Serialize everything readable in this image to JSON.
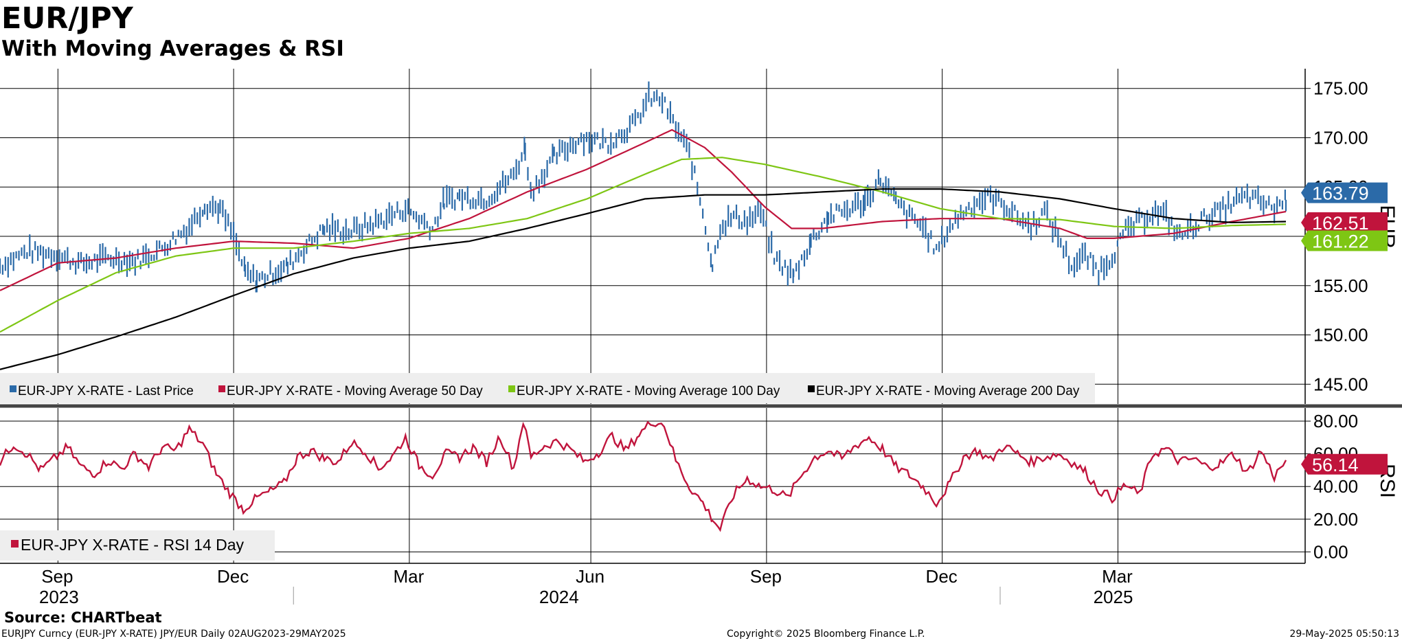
{
  "header": {
    "title": "EUR/JPY",
    "subtitle": "With Moving Averages & RSI"
  },
  "footer": {
    "source": "Source: CHARTbeat",
    "ticker_info": "EURJPY Curncy (EUR-JPY X-RATE) JPY/EUR  Daily 02AUG2023-29MAY2025",
    "copyright": "Copyright© 2025 Bloomberg Finance L.P.",
    "timestamp": "29-May-2025 05:50:13"
  },
  "colors": {
    "price": "#2b6aa8",
    "ma50": "#c0143c",
    "ma100": "#7ec614",
    "ma200": "#000000",
    "rsi": "#c0143c",
    "grid": "#000000",
    "legend_bg": "#eeeeee"
  },
  "chart_data": [
    {
      "type": "line",
      "panel": "price",
      "ylabel": "EUR",
      "ylim": [
        143,
        177
      ],
      "yticks": [
        "175.00",
        "170.00",
        "165.00",
        "160.00",
        "155.00",
        "150.00",
        "145.00"
      ],
      "ytick_values": [
        175,
        170,
        165,
        160,
        155,
        150,
        145
      ],
      "grid": true,
      "legend_position": "bottom-left",
      "x_tick_labels": [
        "Sep",
        "Dec",
        "Mar",
        "Jun",
        "Sep",
        "Dec",
        "Mar"
      ],
      "x_year_labels": [
        "2023",
        "2024",
        "2025"
      ],
      "x_tick_dates": [
        "2023-09-01",
        "2023-12-01",
        "2024-03-01",
        "2024-06-03",
        "2024-09-02",
        "2024-12-02",
        "2025-03-03"
      ],
      "x_year_dates": [
        "2023-10-16",
        "2024-07-01",
        "2025-04-14"
      ],
      "x_range": [
        "2023-08-02",
        "2025-05-29"
      ],
      "last_values": {
        "price": "163.79",
        "ma50": "162.51",
        "ma100": "161.22"
      },
      "series": [
        {
          "name": "EUR-JPY X-RATE - Last Price",
          "key": "price",
          "x": [
            "2023-08-02",
            "2023-08-16",
            "2023-08-30",
            "2023-09-13",
            "2023-09-27",
            "2023-10-11",
            "2023-10-25",
            "2023-11-08",
            "2023-11-16",
            "2023-11-24",
            "2023-12-01",
            "2023-12-07",
            "2023-12-13",
            "2023-12-20",
            "2023-12-29",
            "2024-01-05",
            "2024-01-17",
            "2024-01-31",
            "2024-02-14",
            "2024-02-28",
            "2024-03-13",
            "2024-03-19",
            "2024-03-27",
            "2024-04-10",
            "2024-04-24",
            "2024-04-30",
            "2024-05-03",
            "2024-05-15",
            "2024-05-29",
            "2024-06-12",
            "2024-06-26",
            "2024-07-03",
            "2024-07-10",
            "2024-07-17",
            "2024-07-24",
            "2024-07-31",
            "2024-08-05",
            "2024-08-09",
            "2024-08-16",
            "2024-08-23",
            "2024-08-30",
            "2024-09-06",
            "2024-09-16",
            "2024-09-25",
            "2024-10-04",
            "2024-10-11",
            "2024-10-23",
            "2024-10-31",
            "2024-11-08",
            "2024-11-15",
            "2024-11-22",
            "2024-11-29",
            "2024-12-06",
            "2024-12-13",
            "2024-12-20",
            "2024-12-27",
            "2025-01-03",
            "2025-01-10",
            "2025-01-17",
            "2025-01-24",
            "2025-01-31",
            "2025-02-07",
            "2025-02-14",
            "2025-02-21",
            "2025-02-28",
            "2025-03-07",
            "2025-03-14",
            "2025-03-21",
            "2025-03-28",
            "2025-04-04",
            "2025-04-11",
            "2025-04-18",
            "2025-04-25",
            "2025-05-02",
            "2025-05-09",
            "2025-05-16",
            "2025-05-23",
            "2025-05-29"
          ],
          "values": [
            157.0,
            158.5,
            158.2,
            157.2,
            157.8,
            157.5,
            158.8,
            161.0,
            163.2,
            162.8,
            160.0,
            156.3,
            155.5,
            156.2,
            157.0,
            158.5,
            160.8,
            160.5,
            161.5,
            162.8,
            160.8,
            163.5,
            164.0,
            163.8,
            166.2,
            169.0,
            164.5,
            168.0,
            170.0,
            169.5,
            171.5,
            174.0,
            173.8,
            171.0,
            168.5,
            162.5,
            157.0,
            161.0,
            162.0,
            161.5,
            162.5,
            157.8,
            156.0,
            159.5,
            162.0,
            162.5,
            163.5,
            165.8,
            163.5,
            162.0,
            161.0,
            158.5,
            161.0,
            162.5,
            163.5,
            164.0,
            163.2,
            162.0,
            161.0,
            162.5,
            160.0,
            157.0,
            158.0,
            156.5,
            158.0,
            160.5,
            161.5,
            162.5,
            162.0,
            160.0,
            161.0,
            162.0,
            162.5,
            163.5,
            164.0,
            163.5,
            162.8,
            163.79
          ]
        },
        {
          "name": "EUR-JPY X-RATE - Moving Average 50 Day",
          "key": "ma50",
          "x": [
            "2023-08-02",
            "2023-09-01",
            "2023-10-01",
            "2023-11-01",
            "2023-12-01",
            "2024-01-01",
            "2024-02-01",
            "2024-03-01",
            "2024-04-01",
            "2024-05-01",
            "2024-06-01",
            "2024-07-01",
            "2024-07-15",
            "2024-08-01",
            "2024-08-15",
            "2024-09-01",
            "2024-09-15",
            "2024-10-01",
            "2024-11-01",
            "2024-12-01",
            "2025-01-01",
            "2025-02-01",
            "2025-02-15",
            "2025-03-01",
            "2025-04-01",
            "2025-05-01",
            "2025-05-29"
          ],
          "values": [
            154.5,
            157.3,
            157.8,
            158.8,
            159.5,
            159.3,
            158.8,
            159.8,
            161.8,
            164.5,
            166.8,
            169.5,
            170.8,
            169.0,
            166.5,
            163.0,
            160.8,
            160.8,
            161.5,
            161.8,
            161.8,
            160.8,
            159.8,
            159.8,
            160.3,
            161.5,
            162.51
          ]
        },
        {
          "name": "EUR-JPY X-RATE - Moving Average 100 Day",
          "key": "ma100",
          "x": [
            "2023-08-02",
            "2023-09-01",
            "2023-10-01",
            "2023-11-01",
            "2023-12-01",
            "2024-01-01",
            "2024-02-01",
            "2024-03-01",
            "2024-04-01",
            "2024-05-01",
            "2024-06-01",
            "2024-07-01",
            "2024-07-20",
            "2024-08-10",
            "2024-09-01",
            "2024-10-01",
            "2024-11-01",
            "2024-12-01",
            "2025-01-01",
            "2025-02-01",
            "2025-03-01",
            "2025-04-01",
            "2025-05-01",
            "2025-05-29"
          ],
          "values": [
            150.3,
            153.5,
            156.3,
            158.0,
            158.8,
            158.8,
            159.5,
            160.3,
            160.8,
            161.8,
            163.8,
            166.3,
            167.8,
            168.0,
            167.3,
            166.0,
            164.5,
            162.8,
            161.8,
            161.7,
            161.0,
            160.8,
            161.1,
            161.22
          ]
        },
        {
          "name": "EUR-JPY X-RATE - Moving Average 200 Day",
          "key": "ma200",
          "x": [
            "2023-08-02",
            "2023-09-01",
            "2023-10-01",
            "2023-11-01",
            "2023-12-01",
            "2024-01-01",
            "2024-02-01",
            "2024-03-01",
            "2024-04-01",
            "2024-05-01",
            "2024-06-01",
            "2024-07-01",
            "2024-08-01",
            "2024-09-01",
            "2024-10-01",
            "2024-11-01",
            "2024-12-01",
            "2025-01-01",
            "2025-02-01",
            "2025-03-01",
            "2025-04-01",
            "2025-05-01",
            "2025-05-29"
          ],
          "values": [
            146.5,
            148.0,
            149.8,
            151.8,
            154.0,
            156.2,
            157.8,
            158.8,
            159.5,
            160.8,
            162.3,
            163.8,
            164.2,
            164.2,
            164.5,
            164.8,
            164.8,
            164.5,
            163.8,
            162.8,
            161.8,
            161.4,
            161.5
          ]
        }
      ]
    },
    {
      "type": "line",
      "panel": "rsi",
      "ylabel": "RSI",
      "ylim": [
        -7,
        88
      ],
      "yticks": [
        "80.00",
        "60.00",
        "40.00",
        "20.00",
        "0.00"
      ],
      "ytick_values": [
        80,
        60,
        40,
        20,
        0
      ],
      "grid": true,
      "legend_position": "bottom-left",
      "last_values": {
        "rsi": "56.14"
      },
      "series": [
        {
          "name": "EUR-JPY X-RATE - RSI 14 Day",
          "key": "rsi",
          "x": [
            "2023-08-02",
            "2023-08-09",
            "2023-08-16",
            "2023-08-23",
            "2023-08-30",
            "2023-09-06",
            "2023-09-13",
            "2023-09-20",
            "2023-09-27",
            "2023-10-04",
            "2023-10-11",
            "2023-10-18",
            "2023-10-25",
            "2023-11-01",
            "2023-11-08",
            "2023-11-15",
            "2023-11-22",
            "2023-11-29",
            "2023-12-06",
            "2023-12-13",
            "2023-12-20",
            "2023-12-27",
            "2024-01-03",
            "2024-01-10",
            "2024-01-17",
            "2024-01-24",
            "2024-01-31",
            "2024-02-07",
            "2024-02-14",
            "2024-02-21",
            "2024-02-28",
            "2024-03-06",
            "2024-03-13",
            "2024-03-20",
            "2024-03-27",
            "2024-04-03",
            "2024-04-10",
            "2024-04-17",
            "2024-04-24",
            "2024-04-29",
            "2024-05-03",
            "2024-05-10",
            "2024-05-17",
            "2024-05-24",
            "2024-05-31",
            "2024-06-07",
            "2024-06-14",
            "2024-06-21",
            "2024-06-28",
            "2024-07-05",
            "2024-07-11",
            "2024-07-17",
            "2024-07-24",
            "2024-07-31",
            "2024-08-05",
            "2024-08-09",
            "2024-08-16",
            "2024-08-23",
            "2024-08-30",
            "2024-09-06",
            "2024-09-13",
            "2024-09-20",
            "2024-09-27",
            "2024-10-04",
            "2024-10-11",
            "2024-10-18",
            "2024-10-25",
            "2024-11-01",
            "2024-11-08",
            "2024-11-15",
            "2024-11-22",
            "2024-11-29",
            "2024-12-06",
            "2024-12-13",
            "2024-12-20",
            "2024-12-27",
            "2025-01-03",
            "2025-01-10",
            "2025-01-17",
            "2025-01-24",
            "2025-01-31",
            "2025-02-07",
            "2025-02-14",
            "2025-02-21",
            "2025-02-28",
            "2025-03-07",
            "2025-03-14",
            "2025-03-21",
            "2025-03-28",
            "2025-04-04",
            "2025-04-11",
            "2025-04-18",
            "2025-04-25",
            "2025-05-02",
            "2025-05-09",
            "2025-05-16",
            "2025-05-23",
            "2025-05-29"
          ],
          "values": [
            55,
            66,
            60,
            50,
            57,
            64,
            52,
            48,
            56,
            51,
            60,
            52,
            64,
            62,
            75,
            66,
            48,
            36,
            26,
            33,
            37,
            42,
            58,
            62,
            57,
            55,
            67,
            62,
            51,
            58,
            70,
            53,
            47,
            60,
            58,
            64,
            55,
            71,
            51,
            80,
            58,
            65,
            68,
            62,
            55,
            61,
            71,
            62,
            72,
            80,
            78,
            56,
            40,
            30,
            20,
            14,
            35,
            45,
            40,
            38,
            33,
            47,
            58,
            62,
            57,
            65,
            70,
            63,
            52,
            47,
            40,
            30,
            42,
            58,
            62,
            56,
            65,
            60,
            55,
            58,
            60,
            55,
            49,
            38,
            33,
            41,
            35,
            60,
            63,
            55,
            57,
            52,
            54,
            60,
            48,
            62,
            46,
            56.14
          ]
        }
      ]
    }
  ]
}
